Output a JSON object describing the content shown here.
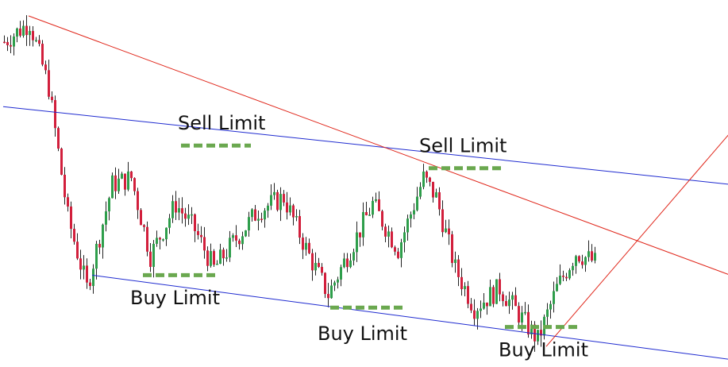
{
  "chart_data": {
    "type": "candlestick",
    "title": "",
    "xlabel": "",
    "ylabel": "",
    "grid": false,
    "colors": {
      "bull": "#2e9e4b",
      "bear": "#d21f3c",
      "wick": "#222222",
      "channel_line": "#1f2bd0",
      "trend_line": "#e0261a",
      "limit_marker": "#6aa84f"
    },
    "price_path_keypoints": [
      {
        "bar": 0,
        "price": 0.92
      },
      {
        "bar": 8,
        "price": 0.98
      },
      {
        "bar": 14,
        "price": 0.78
      },
      {
        "bar": 20,
        "price": 0.38
      },
      {
        "bar": 26,
        "price": 0.16
      },
      {
        "bar": 34,
        "price": 0.48
      },
      {
        "bar": 40,
        "price": 0.5
      },
      {
        "bar": 46,
        "price": 0.26
      },
      {
        "bar": 54,
        "price": 0.42
      },
      {
        "bar": 60,
        "price": 0.34
      },
      {
        "bar": 66,
        "price": 0.22
      },
      {
        "bar": 72,
        "price": 0.3
      },
      {
        "bar": 80,
        "price": 0.4
      },
      {
        "bar": 88,
        "price": 0.44
      },
      {
        "bar": 96,
        "price": 0.26
      },
      {
        "bar": 102,
        "price": 0.14
      },
      {
        "bar": 110,
        "price": 0.3
      },
      {
        "bar": 116,
        "price": 0.42
      },
      {
        "bar": 124,
        "price": 0.28
      },
      {
        "bar": 132,
        "price": 0.5
      },
      {
        "bar": 136,
        "price": 0.44
      },
      {
        "bar": 142,
        "price": 0.22
      },
      {
        "bar": 148,
        "price": 0.1
      },
      {
        "bar": 156,
        "price": 0.16
      },
      {
        "bar": 162,
        "price": 0.08
      },
      {
        "bar": 168,
        "price": 0.0
      },
      {
        "bar": 174,
        "price": 0.16
      },
      {
        "bar": 180,
        "price": 0.27
      },
      {
        "bar": 186,
        "price": 0.24
      }
    ],
    "lines": [
      {
        "name": "channel-upper",
        "kind": "channel",
        "from": {
          "bar": 0,
          "price": 0.72
        },
        "to": {
          "bar": 229,
          "price": 0.48
        }
      },
      {
        "name": "channel-lower",
        "kind": "channel",
        "from": {
          "bar": 28,
          "price": 0.2
        },
        "to": {
          "bar": 229,
          "price": -0.06
        }
      },
      {
        "name": "trend-down",
        "kind": "trend",
        "from": {
          "bar": 8,
          "price": 1.0
        },
        "to": {
          "bar": 229,
          "price": 0.2
        }
      },
      {
        "name": "trend-up",
        "kind": "trend",
        "from": {
          "bar": 171,
          "price": -0.02
        },
        "to": {
          "bar": 229,
          "price": 0.64
        }
      }
    ],
    "annotations": [
      {
        "label": "Sell Limit",
        "marker": {
          "bar_from": 56,
          "bar_to": 78,
          "price": 0.6
        },
        "text": {
          "bar": 55,
          "price": 0.65
        }
      },
      {
        "label": "Buy Limit",
        "marker": {
          "bar_from": 44,
          "bar_to": 67,
          "price": 0.2
        },
        "text": {
          "bar": 40,
          "price": 0.11
        }
      },
      {
        "label": "Buy Limit",
        "marker": {
          "bar_from": 103,
          "bar_to": 126,
          "price": 0.1
        },
        "text": {
          "bar": 99,
          "price": 0.0
        }
      },
      {
        "label": "Sell Limit",
        "marker": {
          "bar_from": 134,
          "bar_to": 157,
          "price": 0.53
        },
        "text": {
          "bar": 131,
          "price": 0.58
        }
      },
      {
        "label": "Buy Limit",
        "marker": {
          "bar_from": 158,
          "bar_to": 181,
          "price": 0.04
        },
        "text": {
          "bar": 156,
          "price": -0.05
        }
      }
    ]
  }
}
